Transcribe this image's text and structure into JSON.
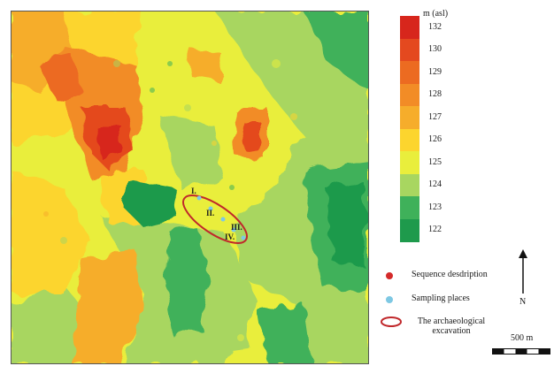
{
  "legend": {
    "title": "m (asl)",
    "classes": [
      {
        "label": "132",
        "color": "#d7261c"
      },
      {
        "label": "130",
        "color": "#e4491f"
      },
      {
        "label": "129",
        "color": "#ec6b21"
      },
      {
        "label": "128",
        "color": "#f28c26"
      },
      {
        "label": "127",
        "color": "#f6ad2b"
      },
      {
        "label": "126",
        "color": "#fcd52e"
      },
      {
        "label": "125",
        "color": "#e9ee3c"
      },
      {
        "label": "124",
        "color": "#a8d660"
      },
      {
        "label": "123",
        "color": "#3fb15a"
      },
      {
        "label": "122",
        "color": "#1e9a4c"
      }
    ]
  },
  "key": {
    "sequence": {
      "label": "Sequence desdription",
      "color": "#d42a2a"
    },
    "sampling": {
      "label": "Sampling places",
      "color": "#7ec8e3"
    },
    "excavation": {
      "label_line1": "The archaeological",
      "label_line2": "excavation",
      "color": "#c0282b"
    }
  },
  "north_label": "N",
  "scale_label": "500 m",
  "sites": [
    "I.",
    "II.",
    "III.",
    "IV."
  ]
}
